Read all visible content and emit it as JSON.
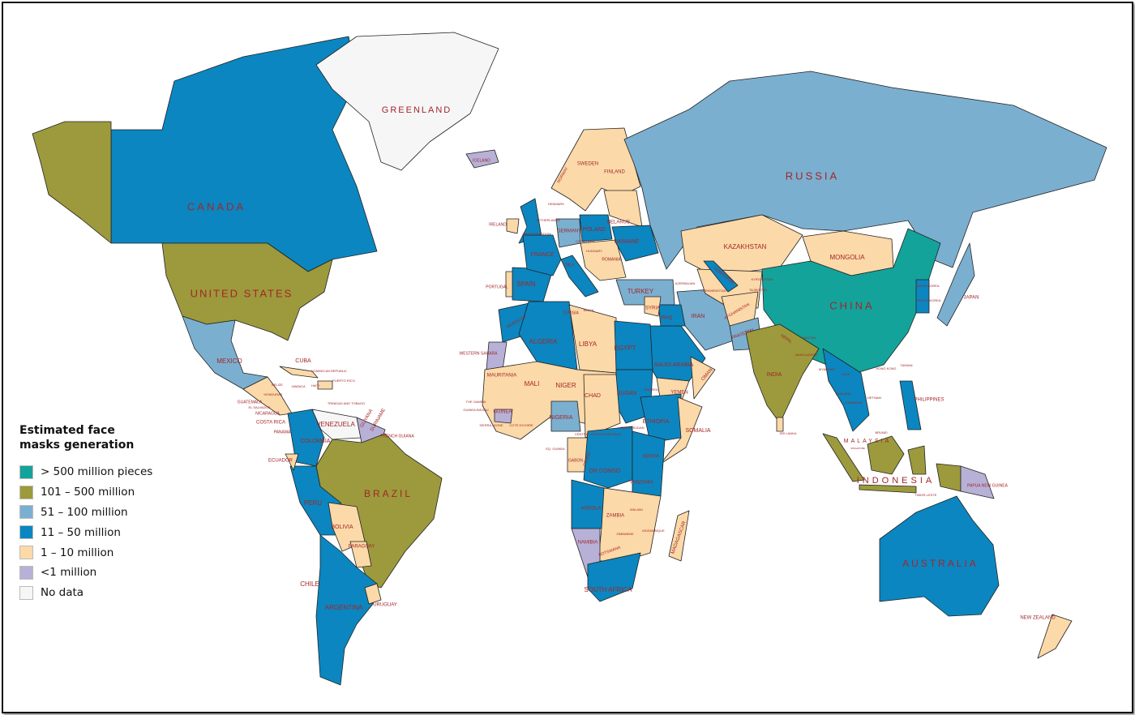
{
  "legend": {
    "title": "Estimated face masks generation",
    "items": [
      {
        "key": "c500",
        "label": "> 500 million pieces",
        "color": "#13a39b"
      },
      {
        "key": "c101",
        "label": "101 – 500 million",
        "color": "#9c9a3c"
      },
      {
        "key": "c51",
        "label": "51 – 100 million",
        "color": "#7bafd0"
      },
      {
        "key": "c11",
        "label": "11 – 50 million",
        "color": "#0b86c0"
      },
      {
        "key": "c1",
        "label": "1 – 10 million",
        "color": "#fcd9a8"
      },
      {
        "key": "c0",
        "label": "<1 million",
        "color": "#b7b1d8"
      },
      {
        "key": "nd",
        "label": "No data",
        "color": "#f6f6f6"
      }
    ]
  },
  "label_color": "#a3262a",
  "region_categories": {
    "Canada": "c11",
    "Greenland": "nd",
    "Alaska": "c101",
    "United States": "c101",
    "Mexico": "c51",
    "Central America": "c1",
    "Cuba": "c1",
    "Hispaniola": "c1",
    "Colombia": "c11",
    "Venezuela": "nd",
    "Guianas": "c0",
    "Brazil": "c101",
    "Peru": "c11",
    "Ecuador": "c1",
    "Bolivia": "c1",
    "Paraguay": "c1",
    "Chile-Argentina": "c11",
    "Uruguay": "c1",
    "Iceland": "c0",
    "United Kingdom": "c11",
    "Ireland": "c1",
    "Scandinavia": "c1",
    "Spain": "c11",
    "Portugal": "c1",
    "France": "c11",
    "Germany": "c51",
    "Poland": "c11",
    "Italy": "c11",
    "Eastern Europe": "c1",
    "Baltics-Belarus": "c1",
    "Ukraine": "c11",
    "Russia": "c51",
    "Kazakhstan": "c1",
    "Mongolia": "c1",
    "China": "c500",
    "Turkey": "c51",
    "Iran": "c51",
    "Central Asia": "c1",
    "Uzbekistan": "c11",
    "Afghanistan": "c1",
    "Pakistan": "c51",
    "India": "c101",
    "Southeast Asia": "c11",
    "Korea": "c11",
    "Japan": "c51",
    "Philippines": "c11",
    "Sumatra": "c101",
    "Borneo": "c101",
    "Java": "c101",
    "Sulawesi": "c101",
    "New Guinea West": "c101",
    "Papua New Guinea": "c0",
    "Australia": "c11",
    "New Zealand": "c1",
    "Saudi Arabia": "c11",
    "Iraq": "c11",
    "Syria": "c1",
    "Yemen": "c1",
    "Oman": "c1",
    "Morocco": "c11",
    "Western Sahara": "c0",
    "Algeria": "c11",
    "Libya": "c1",
    "Egypt": "c11",
    "West Africa": "c1",
    "Nigeria": "c51",
    "Guinea": "c0",
    "Sudan": "c11",
    "Ethiopia": "c11",
    "Somalia": "c1",
    "Chad-CAR": "c1",
    "Gabon-Congo": "c1",
    "DR Congo": "c11",
    "Kenya-Tanzania": "c11",
    "Angola": "c11",
    "Southern Africa": "c1",
    "Namibia": "c0",
    "South Africa": "c11",
    "Madagascar": "c1",
    "Sri Lanka": "c1"
  },
  "labels": [
    "GREENLAND",
    "CANADA",
    "UNITED STATES",
    "MEXICO",
    "CUBA",
    "DOMINICAN REPUBLIC",
    "PUERTO RICO",
    "HAITI",
    "JAMAICA",
    "BELIZE",
    "GUATEMALA",
    "EL SALVADOR",
    "NICARAGUA",
    "HONDURAS",
    "COSTA RICA",
    "PANAMA",
    "TRINIDAD AND TOBAGO",
    "VENEZUELA",
    "GUYANA",
    "SURINAME",
    "FRENCH GUIANA",
    "COLOMBIA",
    "ECUADOR",
    "PERU",
    "BRAZIL",
    "BOLIVIA",
    "PARAGUAY",
    "CHILE",
    "ARGENTINA",
    "URUGUAY",
    "ICELAND",
    "IRELAND",
    "UNITED KINGDOM",
    "NETHERLANDS",
    "DENMARK",
    "NORWAY",
    "SWEDEN",
    "FINLAND",
    "BELARUS",
    "POLAND",
    "GERMANY",
    "UKRAINE",
    "FRANCE",
    "SPAIN",
    "PORTUGAL",
    "ITALY",
    "ROMANIA",
    "HUNGARY",
    "CZECH REP.",
    "TURKEY",
    "SYRIA",
    "IRAQ",
    "TUNISIA",
    "MALTA",
    "MOROCCO",
    "ALGERIA",
    "LIBYA",
    "EGYPT",
    "WESTERN SAHARA",
    "MAURITANIA",
    "MALI",
    "NIGER",
    "CHAD",
    "SUDAN",
    "SAUDI ARABIA",
    "YEMEN",
    "OMAN",
    "ERITREA",
    "NIGERIA",
    "ETHIOPIA",
    "SOMALIA",
    "SOUTH SUDAN",
    "CENTRAL AFRICAN REPUBLIC",
    "THE GAMBIA",
    "GUINEA-BISSAU",
    "GUINEA",
    "SIERRA LEONE",
    "COTE D'IVOIRE",
    "EQ. GUINEA",
    "GABON",
    "CONGO",
    "DR CONGO",
    "KENYA",
    "TANZANIA",
    "ANGOLA",
    "ZAMBIA",
    "MALAWI",
    "ZIMBABWE",
    "MOZAMBIQUE",
    "NAMIBIA",
    "BOTSWANA",
    "MADAGASCAR",
    "SOUTH AFRICA",
    "RUSSIA",
    "KAZAKHSTAN",
    "MONGOLIA",
    "UZBEKISTAN",
    "KYRGYZSTAN",
    "TURKMENISTAN",
    "TAJIKISTAN",
    "AZERBAIJAN",
    "IRAN",
    "AFGHANISTAN",
    "PAKISTAN",
    "CHINA",
    "NORTH KOREA",
    "SOUTH KOREA",
    "JAPAN",
    "NEPAL",
    "BHUTAN",
    "BANGLADESH",
    "INDIA",
    "MYANMAR",
    "LAOS",
    "THAILAND",
    "VIETNAM",
    "CAMBODIA",
    "HONG KONG",
    "TAIWAN",
    "PHILIPPINES",
    "SRI LANKA",
    "BRUNEI",
    "MALAYSIA",
    "SINGAPORE",
    "INDONESIA",
    "TIMOR-LESTE",
    "PAPUA NEW GUINEA",
    "AUSTRALIA",
    "NEW ZEALAND"
  ]
}
